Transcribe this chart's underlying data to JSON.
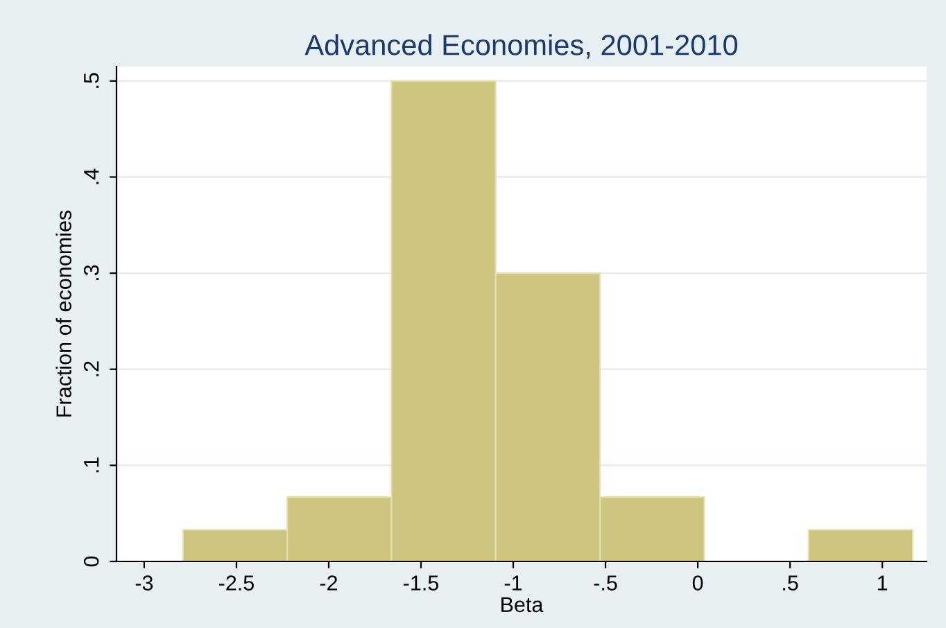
{
  "chart_data": {
    "type": "histogram",
    "title": "Advanced Economies, 2001-2010",
    "xlabel": "Beta",
    "ylabel": "Fraction of economies",
    "bins": [
      -2.79,
      -2.225,
      -1.66,
      -1.095,
      -0.53,
      0.035,
      0.6,
      1.165
    ],
    "values": [
      0.033,
      0.067,
      0.5,
      0.3,
      0.067,
      0,
      0.033
    ],
    "color": "#cdc47e",
    "xlim": [
      -3.15,
      1.24
    ],
    "ylim": [
      0,
      0.515
    ],
    "xticks": [
      -3,
      -2.5,
      -2,
      -1.5,
      -1,
      {
        "value": -0.5,
        "label": "-.5"
      },
      0,
      {
        "value": 0.5,
        "label": ".5"
      },
      1
    ],
    "yticks": [
      0,
      {
        "value": 0.1,
        "label": ".1"
      },
      {
        "value": 0.2,
        "label": ".2"
      },
      {
        "value": 0.3,
        "label": ".3"
      },
      {
        "value": 0.4,
        "label": ".4"
      },
      {
        "value": 0.5,
        "label": ".5"
      }
    ],
    "grid": "y"
  }
}
